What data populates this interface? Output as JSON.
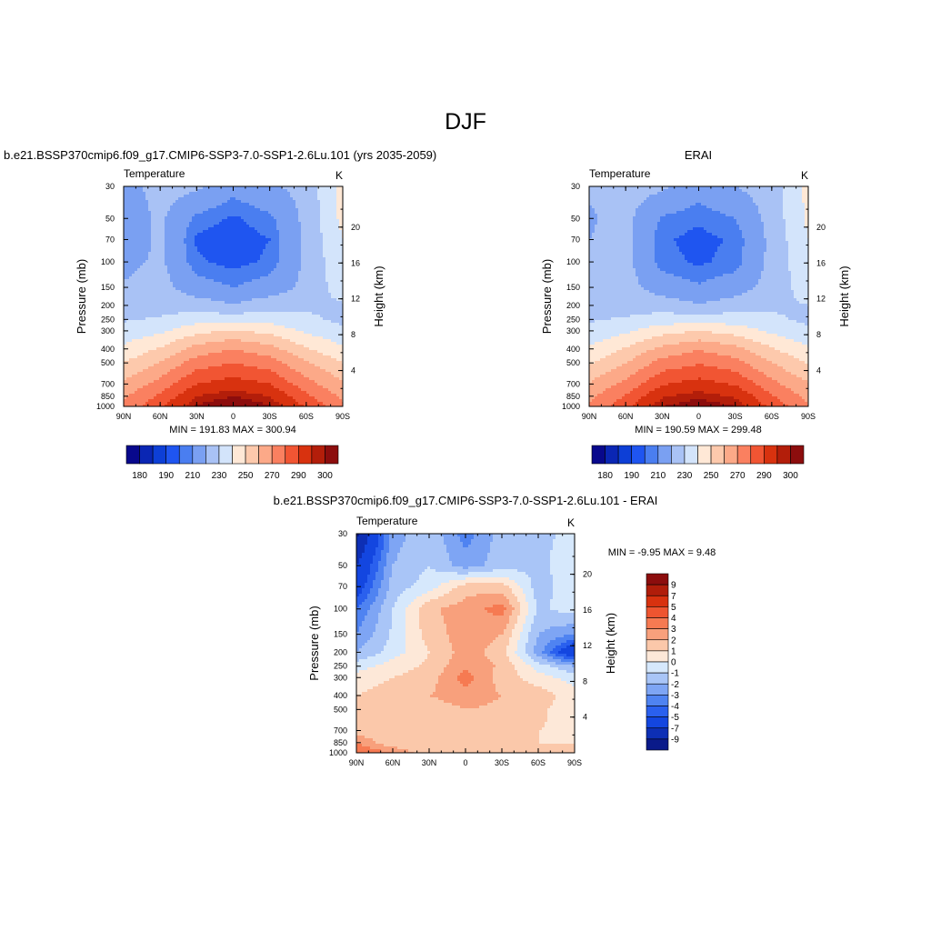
{
  "figure": {
    "title": "DJF"
  },
  "colors": {
    "abs_palette": [
      "#08088c",
      "#0a26b4",
      "#0d3fd6",
      "#1f55f0",
      "#4a7ef0",
      "#7aa0f2",
      "#a9c2f5",
      "#d3e4fb",
      "#ffe8d6",
      "#fdc9ac",
      "#fca988",
      "#fa8060",
      "#f15533",
      "#d8320f",
      "#b31e0a",
      "#8c0d0d"
    ],
    "diff_palette": [
      "#0a1a8a",
      "#0d2fb5",
      "#1346e0",
      "#2a60ee",
      "#4f83f1",
      "#7ea5f4",
      "#a9c5f7",
      "#d6e8fc",
      "#fde8d8",
      "#fbc8aa",
      "#f8a07c",
      "#f67a52",
      "#ee5530",
      "#d8320f",
      "#b01d0a",
      "#8c0d0d"
    ]
  },
  "chart_data": [
    {
      "type": "heatmap",
      "panel": "test",
      "header": "b.e21.BSSP370cmip6.f09_g17.CMIP6-SSP3-7.0-SSP1-2.6Lu.101 (yrs 2035-2059)",
      "left_label": "Temperature",
      "right_label": "K",
      "xlabel": "",
      "ylabel": "Pressure (mb)",
      "y2label": "Height (km)",
      "x_ticks": [
        "90N",
        "60N",
        "30N",
        "0",
        "30S",
        "60S",
        "90S"
      ],
      "y_ticks": [
        "30",
        "50",
        "70",
        "100",
        "150",
        "200",
        "250",
        "300",
        "400",
        "500",
        "700",
        "850",
        "1000"
      ],
      "y2_ticks": [
        "20",
        "16",
        "12",
        "8",
        "4"
      ],
      "min_max_text": "MIN = 191.83  MAX = 300.94",
      "x": [
        90,
        60,
        30,
        0,
        -30,
        -60,
        -90
      ],
      "y": [
        30,
        50,
        70,
        100,
        150,
        200,
        250,
        300,
        400,
        500,
        700,
        850,
        1000
      ],
      "levels": [
        175,
        180,
        185,
        190,
        195,
        200,
        210,
        220,
        230,
        240,
        250,
        260,
        270,
        280,
        290,
        295,
        300
      ],
      "z": [
        [
          206,
          214,
          212,
          203,
          209,
          213,
          234
        ],
        [
          203,
          212,
          198,
          194,
          198,
          213,
          233
        ],
        [
          203,
          212,
          194,
          192,
          195,
          212,
          230
        ],
        [
          207,
          212,
          196,
          193,
          196,
          212,
          228
        ],
        [
          211,
          214,
          204,
          200,
          204,
          213,
          225
        ],
        [
          214,
          216,
          215,
          211,
          216,
          218,
          219
        ],
        [
          219,
          221,
          226,
          226,
          226,
          222,
          218
        ],
        [
          224,
          228,
          237,
          241,
          237,
          228,
          222
        ],
        [
          232,
          241,
          254,
          260,
          254,
          241,
          232
        ],
        [
          240,
          251,
          265,
          270,
          265,
          251,
          240
        ],
        [
          252,
          264,
          280,
          285,
          280,
          264,
          252
        ],
        [
          258,
          272,
          290,
          295,
          290,
          272,
          258
        ],
        [
          262,
          278,
          296,
          301,
          296,
          279,
          262
        ]
      ],
      "colorbar_labels": [
        "180",
        "190",
        "210",
        "230",
        "250",
        "270",
        "290",
        "300"
      ],
      "colorbar_orientation": "horizontal"
    },
    {
      "type": "heatmap",
      "panel": "reference",
      "header": "ERAI",
      "left_label": "Temperature",
      "right_label": "K",
      "xlabel": "",
      "ylabel": "Pressure (mb)",
      "y2label": "Height (km)",
      "x_ticks": [
        "90N",
        "60N",
        "30N",
        "0",
        "30S",
        "60S",
        "90S"
      ],
      "y_ticks": [
        "30",
        "50",
        "70",
        "100",
        "150",
        "200",
        "250",
        "300",
        "400",
        "500",
        "700",
        "850",
        "1000"
      ],
      "y2_ticks": [
        "20",
        "16",
        "12",
        "8",
        "4"
      ],
      "min_max_text": "MIN = 190.59  MAX = 299.48",
      "x": [
        90,
        60,
        30,
        0,
        -30,
        -60,
        -90
      ],
      "y": [
        30,
        50,
        70,
        100,
        150,
        200,
        250,
        300,
        400,
        500,
        700,
        850,
        1000
      ],
      "levels": [
        175,
        180,
        185,
        190,
        195,
        200,
        210,
        220,
        230,
        240,
        250,
        260,
        270,
        280,
        290,
        295,
        300
      ],
      "z": [
        [
          211,
          214,
          212,
          204,
          210,
          215,
          233
        ],
        [
          209,
          213,
          199,
          196,
          200,
          214,
          232
        ],
        [
          210,
          213,
          196,
          193,
          196,
          213,
          230
        ],
        [
          211,
          213,
          197,
          194,
          197,
          213,
          228
        ],
        [
          213,
          214,
          205,
          201,
          205,
          214,
          225
        ],
        [
          215,
          216,
          215,
          211,
          215,
          218,
          220
        ],
        [
          219,
          221,
          225,
          225,
          225,
          222,
          218
        ],
        [
          223,
          228,
          236,
          240,
          236,
          228,
          222
        ],
        [
          231,
          241,
          253,
          259,
          253,
          241,
          231
        ],
        [
          239,
          250,
          264,
          269,
          264,
          250,
          239
        ],
        [
          251,
          263,
          279,
          284,
          279,
          263,
          251
        ],
        [
          257,
          271,
          289,
          294,
          289,
          271,
          257
        ],
        [
          261,
          277,
          295,
          299,
          295,
          277,
          261
        ]
      ],
      "colorbar_labels": [
        "180",
        "190",
        "210",
        "230",
        "250",
        "270",
        "290",
        "300"
      ],
      "colorbar_orientation": "horizontal"
    },
    {
      "type": "heatmap",
      "panel": "difference",
      "header": "b.e21.BSSP370cmip6.f09_g17.CMIP6-SSP3-7.0-SSP1-2.6Lu.101 - ERAI",
      "left_label": "Temperature",
      "right_label": "K",
      "xlabel": "",
      "ylabel": "Pressure (mb)",
      "y2label": "Height (km)",
      "x_ticks": [
        "90N",
        "60N",
        "30N",
        "0",
        "30S",
        "60S",
        "90S"
      ],
      "y_ticks": [
        "30",
        "50",
        "70",
        "100",
        "150",
        "200",
        "250",
        "300",
        "400",
        "500",
        "700",
        "850",
        "1000"
      ],
      "y2_ticks": [
        "20",
        "16",
        "12",
        "8",
        "4"
      ],
      "min_max_text": "MIN =  -9.95  MAX =   9.48",
      "x": [
        90,
        60,
        30,
        0,
        -30,
        -60,
        -90
      ],
      "y": [
        30,
        50,
        70,
        100,
        150,
        200,
        250,
        300,
        400,
        500,
        700,
        850,
        1000
      ],
      "levels": [
        -10,
        -9,
        -7,
        -5,
        -4,
        -3,
        -2,
        -1,
        0,
        1,
        2,
        3,
        4,
        5,
        7,
        9,
        10
      ],
      "z": [
        [
          -9.5,
          -2.5,
          -1.2,
          -3.5,
          -1.5,
          -1.2,
          -0.8
        ],
        [
          -7,
          -2,
          -1,
          -2.5,
          -1.5,
          -1.2,
          -0.5
        ],
        [
          -6,
          -1.5,
          -0.5,
          1.5,
          1.5,
          -1.5,
          -0.3
        ],
        [
          -4,
          -1,
          1.8,
          2.5,
          3.5,
          -1.2,
          -0.5
        ],
        [
          -3,
          -0.8,
          1.5,
          2.5,
          2,
          -2,
          -3
        ],
        [
          -2,
          -0.5,
          1,
          2.5,
          1.5,
          -2.5,
          -7
        ],
        [
          -0.5,
          0.5,
          1.2,
          2.8,
          1.8,
          -0.5,
          -2
        ],
        [
          0.5,
          1,
          1.5,
          3.5,
          1.5,
          0.5,
          -0.5
        ],
        [
          1,
          1.5,
          2,
          2.5,
          2,
          1.5,
          0.5
        ],
        [
          1,
          1.2,
          1.5,
          2,
          1.8,
          1.2,
          0.5
        ],
        [
          1.5,
          1,
          1.2,
          1.8,
          1.5,
          1,
          0.8
        ],
        [
          3,
          1.2,
          1,
          1.2,
          1.2,
          1,
          1
        ],
        [
          4,
          3,
          1.2,
          1,
          1,
          1,
          1.2
        ]
      ],
      "colorbar_labels": [
        "9",
        "7",
        "5",
        "4",
        "3",
        "2",
        "1",
        "0",
        "-1",
        "-2",
        "-3",
        "-4",
        "-5",
        "-7",
        "-9"
      ],
      "colorbar_orientation": "vertical"
    }
  ]
}
